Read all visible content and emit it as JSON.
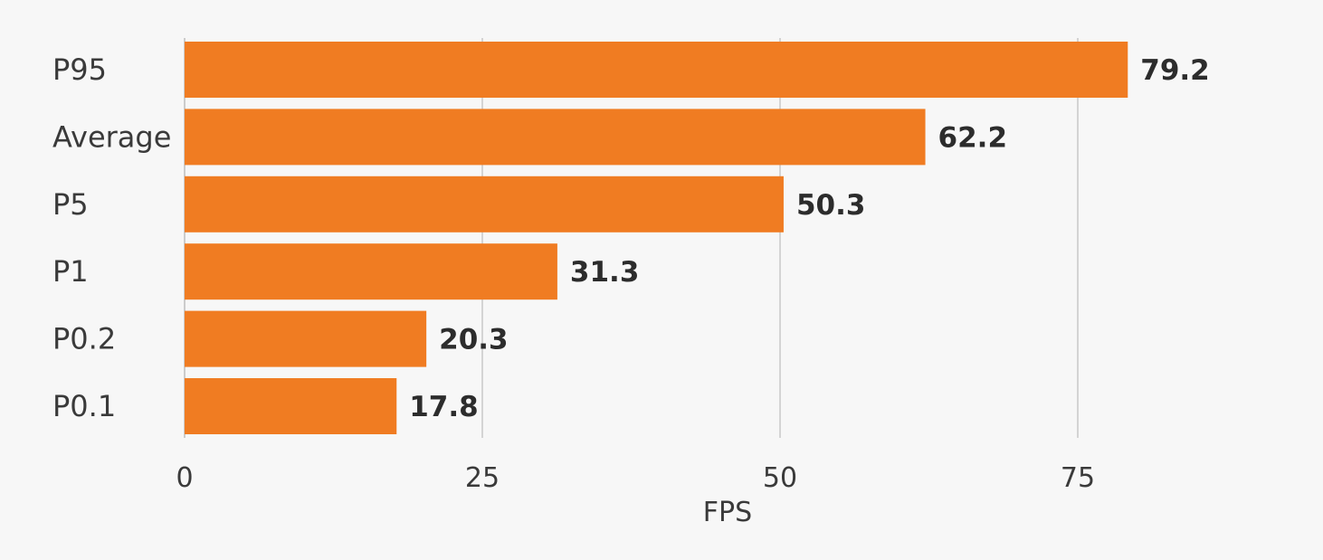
{
  "chart_data": {
    "type": "bar",
    "orientation": "horizontal",
    "categories": [
      "P95",
      "Average",
      "P5",
      "P1",
      "P0.2",
      "P0.1"
    ],
    "values": [
      79.2,
      62.2,
      50.3,
      31.3,
      20.3,
      17.8
    ],
    "value_labels": [
      "79.2",
      "62.2",
      "50.3",
      "31.3",
      "20.3",
      "17.8"
    ],
    "title": "",
    "xlabel": "FPS",
    "ylabel": "",
    "xlim": [
      0,
      90
    ],
    "xticks": [
      0,
      25,
      50,
      75
    ],
    "xtick_labels": [
      "0",
      "25",
      "50",
      "75"
    ],
    "grid": true,
    "legend": "none",
    "bar_color": "#f07c22"
  }
}
